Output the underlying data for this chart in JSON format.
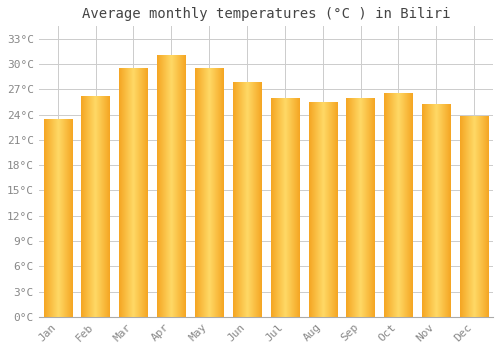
{
  "title": "Average monthly temperatures (°C ) in Biliri",
  "months": [
    "Jan",
    "Feb",
    "Mar",
    "Apr",
    "May",
    "Jun",
    "Jul",
    "Aug",
    "Sep",
    "Oct",
    "Nov",
    "Dec"
  ],
  "temperatures": [
    23.5,
    26.2,
    29.5,
    31.0,
    29.5,
    27.8,
    26.0,
    25.5,
    26.0,
    26.5,
    25.2,
    23.8
  ],
  "bar_color_light": "#FFD966",
  "bar_color_dark": "#F5A623",
  "background_color": "#FFFFFF",
  "grid_color": "#cccccc",
  "yticks": [
    0,
    3,
    6,
    9,
    12,
    15,
    18,
    21,
    24,
    27,
    30,
    33
  ],
  "ylim": [
    0,
    34.5
  ],
  "title_fontsize": 10,
  "tick_fontsize": 8,
  "font_family": "monospace"
}
